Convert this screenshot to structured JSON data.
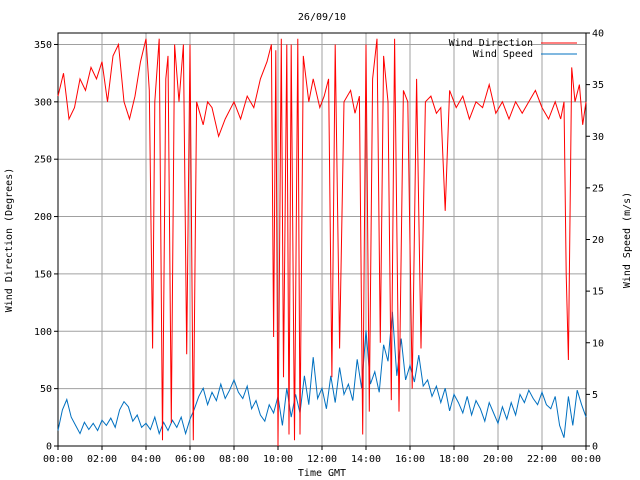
{
  "chart_data": {
    "type": "line",
    "title": "26/09/10",
    "xlabel": "Time GMT",
    "ylabel_left": "Wind Direction (Degrees)",
    "ylabel_right": "Wind Speed (m/s)",
    "xlim": [
      0,
      24
    ],
    "ylim_left": [
      0,
      360
    ],
    "ylim_right": [
      0,
      40
    ],
    "grid": true,
    "legend_position": "top-right",
    "x_tick_labels": [
      "00:00",
      "02:00",
      "04:00",
      "06:00",
      "08:00",
      "10:00",
      "12:00",
      "14:00",
      "16:00",
      "18:00",
      "20:00",
      "22:00",
      "00:00"
    ],
    "y_left_tick_labels": [
      "0",
      "50",
      "100",
      "150",
      "200",
      "250",
      "300",
      "350"
    ],
    "y_right_tick_labels": [
      "0",
      "5",
      "10",
      "15",
      "20",
      "25",
      "30",
      "35",
      "40"
    ],
    "series": [
      {
        "name": "Wind Direction",
        "axis": "left",
        "color": "#ff0000",
        "points": [
          [
            0.0,
            305
          ],
          [
            0.25,
            325
          ],
          [
            0.5,
            285
          ],
          [
            0.75,
            295
          ],
          [
            1.0,
            320
          ],
          [
            1.25,
            310
          ],
          [
            1.5,
            330
          ],
          [
            1.75,
            320
          ],
          [
            2.0,
            335
          ],
          [
            2.25,
            300
          ],
          [
            2.5,
            340
          ],
          [
            2.75,
            350
          ],
          [
            3.0,
            300
          ],
          [
            3.25,
            285
          ],
          [
            3.5,
            305
          ],
          [
            3.75,
            335
          ],
          [
            4.0,
            355
          ],
          [
            4.15,
            310
          ],
          [
            4.3,
            85
          ],
          [
            4.4,
            300
          ],
          [
            4.6,
            355
          ],
          [
            4.75,
            5
          ],
          [
            4.9,
            320
          ],
          [
            5.0,
            340
          ],
          [
            5.15,
            20
          ],
          [
            5.3,
            350
          ],
          [
            5.5,
            300
          ],
          [
            5.7,
            350
          ],
          [
            5.85,
            80
          ],
          [
            6.0,
            350
          ],
          [
            6.15,
            5
          ],
          [
            6.3,
            300
          ],
          [
            6.6,
            280
          ],
          [
            6.8,
            300
          ],
          [
            7.0,
            295
          ],
          [
            7.3,
            270
          ],
          [
            7.6,
            285
          ],
          [
            8.0,
            300
          ],
          [
            8.3,
            285
          ],
          [
            8.6,
            305
          ],
          [
            8.9,
            295
          ],
          [
            9.2,
            320
          ],
          [
            9.5,
            335
          ],
          [
            9.7,
            350
          ],
          [
            9.8,
            95
          ],
          [
            9.9,
            345
          ],
          [
            10.0,
            0
          ],
          [
            10.15,
            355
          ],
          [
            10.25,
            60
          ],
          [
            10.4,
            350
          ],
          [
            10.5,
            10
          ],
          [
            10.6,
            350
          ],
          [
            10.75,
            5
          ],
          [
            10.9,
            355
          ],
          [
            11.0,
            10
          ],
          [
            11.15,
            340
          ],
          [
            11.4,
            300
          ],
          [
            11.6,
            320
          ],
          [
            11.9,
            295
          ],
          [
            12.1,
            305
          ],
          [
            12.3,
            320
          ],
          [
            12.45,
            60
          ],
          [
            12.6,
            350
          ],
          [
            12.8,
            85
          ],
          [
            13.0,
            300
          ],
          [
            13.3,
            310
          ],
          [
            13.5,
            290
          ],
          [
            13.7,
            305
          ],
          [
            13.85,
            10
          ],
          [
            14.0,
            350
          ],
          [
            14.15,
            30
          ],
          [
            14.3,
            320
          ],
          [
            14.5,
            355
          ],
          [
            14.65,
            90
          ],
          [
            14.8,
            340
          ],
          [
            15.0,
            300
          ],
          [
            15.15,
            40
          ],
          [
            15.3,
            355
          ],
          [
            15.5,
            30
          ],
          [
            15.7,
            310
          ],
          [
            15.9,
            300
          ],
          [
            16.1,
            50
          ],
          [
            16.3,
            320
          ],
          [
            16.5,
            85
          ],
          [
            16.7,
            300
          ],
          [
            16.95,
            305
          ],
          [
            17.2,
            290
          ],
          [
            17.4,
            295
          ],
          [
            17.6,
            205
          ],
          [
            17.8,
            310
          ],
          [
            18.1,
            295
          ],
          [
            18.4,
            305
          ],
          [
            18.7,
            285
          ],
          [
            19.0,
            300
          ],
          [
            19.3,
            295
          ],
          [
            19.6,
            315
          ],
          [
            19.9,
            290
          ],
          [
            20.2,
            300
          ],
          [
            20.5,
            285
          ],
          [
            20.8,
            300
          ],
          [
            21.1,
            290
          ],
          [
            21.4,
            300
          ],
          [
            21.7,
            310
          ],
          [
            22.0,
            295
          ],
          [
            22.3,
            285
          ],
          [
            22.6,
            300
          ],
          [
            22.85,
            285
          ],
          [
            23.0,
            300
          ],
          [
            23.1,
            150
          ],
          [
            23.2,
            75
          ],
          [
            23.35,
            330
          ],
          [
            23.5,
            300
          ],
          [
            23.7,
            315
          ],
          [
            23.85,
            280
          ],
          [
            24.0,
            300
          ]
        ]
      },
      {
        "name": "Wind Speed",
        "axis": "right",
        "color": "#0070c0",
        "points": [
          [
            0.0,
            1.5
          ],
          [
            0.2,
            3.5
          ],
          [
            0.4,
            4.5
          ],
          [
            0.6,
            2.8
          ],
          [
            0.8,
            2.0
          ],
          [
            1.0,
            1.2
          ],
          [
            1.2,
            2.3
          ],
          [
            1.4,
            1.6
          ],
          [
            1.6,
            2.2
          ],
          [
            1.8,
            1.5
          ],
          [
            2.0,
            2.5
          ],
          [
            2.2,
            2.0
          ],
          [
            2.4,
            2.7
          ],
          [
            2.6,
            1.8
          ],
          [
            2.8,
            3.5
          ],
          [
            3.0,
            4.3
          ],
          [
            3.2,
            3.8
          ],
          [
            3.4,
            2.4
          ],
          [
            3.6,
            3.0
          ],
          [
            3.8,
            1.8
          ],
          [
            4.0,
            2.2
          ],
          [
            4.2,
            1.6
          ],
          [
            4.4,
            2.8
          ],
          [
            4.6,
            1.2
          ],
          [
            4.8,
            2.3
          ],
          [
            5.0,
            1.5
          ],
          [
            5.2,
            2.5
          ],
          [
            5.4,
            1.8
          ],
          [
            5.6,
            2.8
          ],
          [
            5.8,
            1.2
          ],
          [
            6.0,
            2.6
          ],
          [
            6.2,
            3.6
          ],
          [
            6.4,
            4.8
          ],
          [
            6.6,
            5.6
          ],
          [
            6.8,
            4.0
          ],
          [
            7.0,
            5.2
          ],
          [
            7.2,
            4.4
          ],
          [
            7.4,
            6.0
          ],
          [
            7.6,
            4.6
          ],
          [
            7.8,
            5.4
          ],
          [
            8.0,
            6.4
          ],
          [
            8.2,
            5.2
          ],
          [
            8.4,
            4.6
          ],
          [
            8.6,
            5.8
          ],
          [
            8.8,
            3.6
          ],
          [
            9.0,
            4.4
          ],
          [
            9.2,
            3.0
          ],
          [
            9.4,
            2.4
          ],
          [
            9.6,
            4.0
          ],
          [
            9.8,
            3.2
          ],
          [
            10.0,
            4.8
          ],
          [
            10.2,
            2.0
          ],
          [
            10.4,
            5.6
          ],
          [
            10.6,
            2.8
          ],
          [
            10.8,
            5.0
          ],
          [
            11.0,
            3.2
          ],
          [
            11.2,
            6.8
          ],
          [
            11.4,
            4.0
          ],
          [
            11.6,
            8.6
          ],
          [
            11.8,
            4.6
          ],
          [
            12.0,
            5.6
          ],
          [
            12.2,
            3.6
          ],
          [
            12.4,
            6.8
          ],
          [
            12.6,
            4.2
          ],
          [
            12.8,
            7.6
          ],
          [
            13.0,
            5.0
          ],
          [
            13.2,
            6.0
          ],
          [
            13.4,
            4.4
          ],
          [
            13.6,
            8.4
          ],
          [
            13.8,
            5.6
          ],
          [
            14.0,
            11.2
          ],
          [
            14.2,
            6.0
          ],
          [
            14.4,
            7.2
          ],
          [
            14.6,
            5.2
          ],
          [
            14.8,
            9.8
          ],
          [
            15.0,
            8.2
          ],
          [
            15.2,
            13.0
          ],
          [
            15.4,
            6.8
          ],
          [
            15.6,
            10.4
          ],
          [
            15.8,
            6.4
          ],
          [
            16.0,
            7.8
          ],
          [
            16.2,
            6.2
          ],
          [
            16.4,
            8.8
          ],
          [
            16.6,
            5.8
          ],
          [
            16.8,
            6.4
          ],
          [
            17.0,
            4.8
          ],
          [
            17.2,
            5.8
          ],
          [
            17.4,
            4.2
          ],
          [
            17.6,
            5.6
          ],
          [
            17.8,
            3.4
          ],
          [
            18.0,
            5.0
          ],
          [
            18.2,
            4.2
          ],
          [
            18.4,
            3.2
          ],
          [
            18.6,
            4.8
          ],
          [
            18.8,
            3.0
          ],
          [
            19.0,
            4.4
          ],
          [
            19.2,
            3.6
          ],
          [
            19.4,
            2.4
          ],
          [
            19.6,
            4.2
          ],
          [
            19.8,
            3.2
          ],
          [
            20.0,
            2.2
          ],
          [
            20.2,
            3.8
          ],
          [
            20.4,
            2.6
          ],
          [
            20.6,
            4.2
          ],
          [
            20.8,
            3.0
          ],
          [
            21.0,
            5.0
          ],
          [
            21.2,
            4.2
          ],
          [
            21.4,
            5.4
          ],
          [
            21.6,
            4.6
          ],
          [
            21.8,
            4.0
          ],
          [
            22.0,
            5.2
          ],
          [
            22.2,
            4.0
          ],
          [
            22.4,
            3.6
          ],
          [
            22.6,
            4.8
          ],
          [
            22.8,
            2.0
          ],
          [
            23.0,
            0.8
          ],
          [
            23.2,
            4.8
          ],
          [
            23.4,
            2.0
          ],
          [
            23.6,
            5.4
          ],
          [
            23.8,
            4.0
          ],
          [
            24.0,
            2.8
          ]
        ]
      }
    ]
  }
}
